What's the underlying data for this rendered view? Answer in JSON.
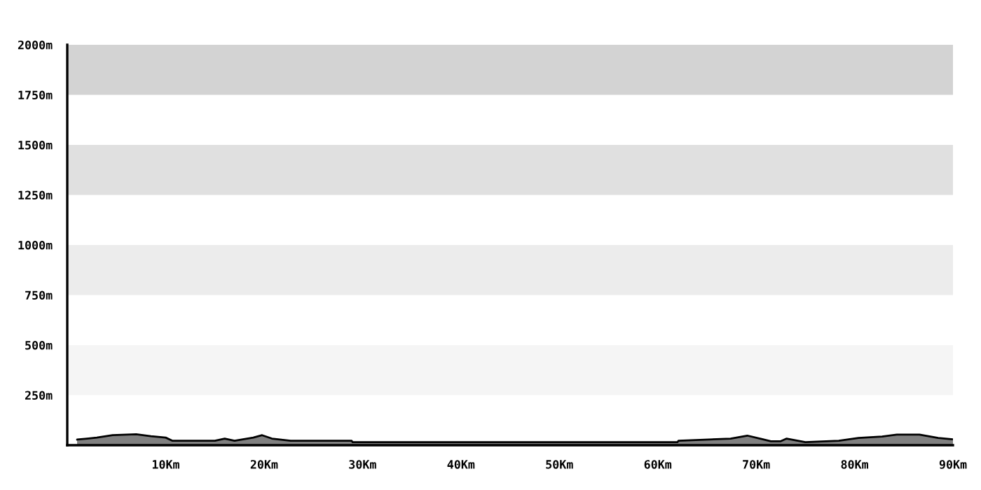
{
  "chart_data": {
    "type": "area",
    "x": [
      1,
      2,
      3,
      4.6,
      7,
      8.5,
      10,
      10.7,
      15,
      16,
      17,
      18.9,
      19.8,
      20.8,
      22.7,
      28.9,
      29,
      62,
      62.1,
      67.4,
      69.1,
      70.4,
      71.5,
      72.5,
      73.1,
      75,
      78.4,
      80.4,
      82.8,
      84.3,
      86.6,
      88.5,
      90
    ],
    "series": [
      {
        "color": "#808080",
        "values": [
          28,
          33,
          38,
          50,
          55,
          45,
          38,
          22,
          22,
          33,
          22,
          38,
          50,
          33,
          22,
          22,
          15,
          15,
          22,
          33,
          48,
          33,
          20,
          20,
          33,
          15,
          22,
          36,
          43,
          53,
          53,
          36,
          29
        ]
      }
    ],
    "xlim": [
      0,
      90
    ],
    "ylim": [
      0,
      2000
    ],
    "xticks": [
      {
        "value": 10,
        "label": "10Km"
      },
      {
        "value": 20,
        "label": "20Km"
      },
      {
        "value": 30,
        "label": "30Km"
      },
      {
        "value": 40,
        "label": "40Km"
      },
      {
        "value": 50,
        "label": "50Km"
      },
      {
        "value": 60,
        "label": "60Km"
      },
      {
        "value": 70,
        "label": "70Km"
      },
      {
        "value": 80,
        "label": "80Km"
      },
      {
        "value": 90,
        "label": "90Km"
      }
    ],
    "yticks": [
      {
        "value": 250,
        "label": "250m"
      },
      {
        "value": 500,
        "label": "500m"
      },
      {
        "value": 750,
        "label": "750m"
      },
      {
        "value": 1000,
        "label": "1000m"
      },
      {
        "value": 1250,
        "label": "1250m"
      },
      {
        "value": 1500,
        "label": "1500m"
      },
      {
        "value": 1750,
        "label": "1750m"
      },
      {
        "value": 2000,
        "label": "2000m"
      }
    ],
    "bands": [
      {
        "axis": "y",
        "from": 250,
        "to": 500,
        "color": "#f5f5f5"
      },
      {
        "axis": "y",
        "from": 750,
        "to": 1000,
        "color": "#ececec"
      },
      {
        "axis": "y",
        "from": 1250,
        "to": 1500,
        "color": "#e0e0e0"
      },
      {
        "axis": "y",
        "from": 1750,
        "to": 2000,
        "color": "#d3d3d3"
      }
    ],
    "grid": false
  }
}
